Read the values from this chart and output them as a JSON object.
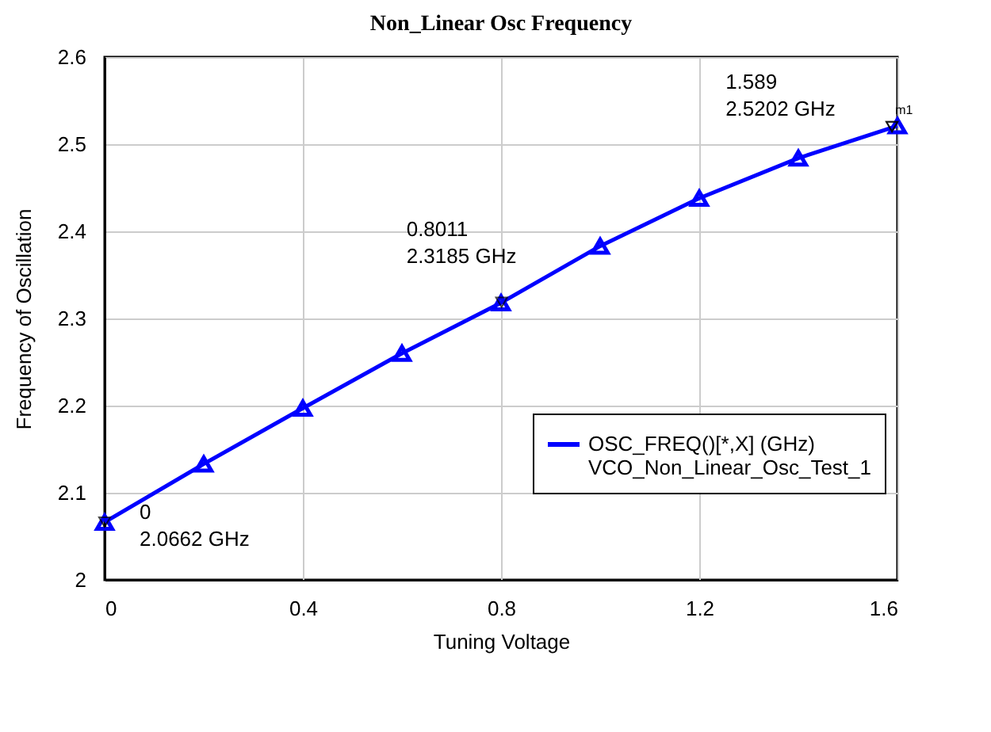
{
  "chart_data": {
    "type": "line",
    "title": "Non_Linear Osc Frequency",
    "xlabel": "Tuning Voltage",
    "ylabel": "Frequency of Oscillation",
    "x": [
      0,
      0.2,
      0.4,
      0.6,
      0.8,
      1.0,
      1.2,
      1.4,
      1.6
    ],
    "series": [
      {
        "name": "OSC_FREQ()[*,X] (GHz)\nVCO_Non_Linear_Osc_Test_1",
        "color": "#0000ff",
        "values": [
          2.0662,
          2.133,
          2.197,
          2.26,
          2.318,
          2.383,
          2.438,
          2.484,
          2.521
        ]
      }
    ],
    "xlim": [
      0,
      1.6
    ],
    "xticks": [
      0,
      0.4,
      0.8,
      1.2,
      1.6
    ],
    "ylim": [
      2,
      2.6
    ],
    "yticks": [
      2,
      2.1,
      2.2,
      2.3,
      2.4,
      2.5,
      2.6
    ],
    "grid": true,
    "legend": "bottom right",
    "marker": "triangle",
    "line_style": "solid",
    "annotations": [
      {
        "text": "0\n2.0662 GHz",
        "x": 0,
        "y": 2.0662
      },
      {
        "text": "0.8011\n2.3185 GHz",
        "x": 0.8011,
        "y": 2.3185
      },
      {
        "text": "1.589\n2.5202 GHz",
        "x": 1.589,
        "y": 2.5202
      },
      {
        "text": "m1",
        "x": 1.589,
        "y": 2.5202
      }
    ]
  }
}
